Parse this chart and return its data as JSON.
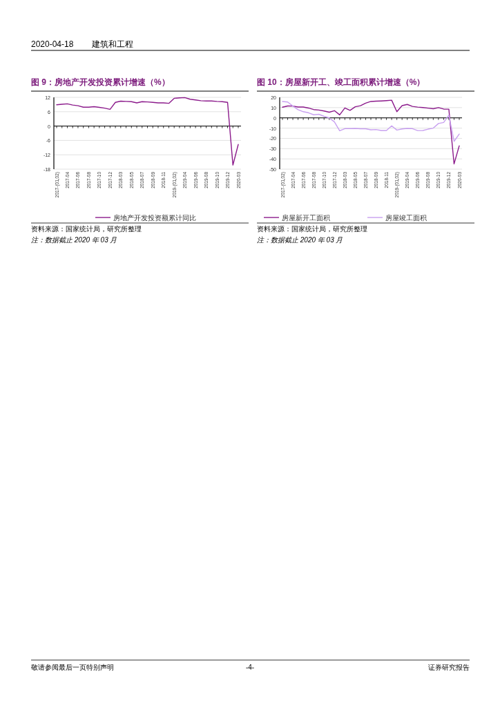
{
  "chart_data": [
    {
      "type": "line",
      "title": "图 9：房地产开发投资累计增速（%）",
      "categories": [
        "2017-(01,02)",
        null,
        "2017-04",
        null,
        "2017-06",
        null,
        "2017-08",
        null,
        "2017-10",
        null,
        "2017-12",
        null,
        "2018-03",
        null,
        "2018-05",
        null,
        "2018-07",
        null,
        "2018-09",
        null,
        "2018-11",
        null,
        "2019-(01,02)",
        null,
        "2019-04",
        null,
        "2019-06",
        null,
        "2019-08",
        null,
        "2019-10",
        null,
        "2019-12",
        null,
        "2020-03"
      ],
      "series": [
        {
          "name": "房地产开发投资额累计同比",
          "color": "#8b1a8b",
          "values": [
            8.9,
            9.1,
            9.3,
            8.8,
            8.5,
            7.9,
            7.9,
            8.1,
            7.8,
            7.5,
            7.0,
            9.9,
            10.4,
            10.3,
            10.2,
            9.7,
            10.2,
            10.1,
            9.9,
            9.7,
            9.7,
            9.5,
            11.6,
            11.8,
            11.9,
            11.2,
            10.9,
            10.6,
            10.5,
            10.5,
            10.3,
            10.2,
            9.9,
            -16.3,
            -7.7
          ]
        }
      ],
      "ylim": [
        -18,
        12
      ],
      "yticks": [
        -18,
        {
          "value": -12,
          "label": "-12"
        },
        -6,
        0,
        6,
        12
      ],
      "grid": "y",
      "legend": "bottom",
      "annotations": [
        "资料来源：国家统计局，研究所整理",
        "注：数据截止 2020 年 03 月",
        "2020-04-18",
        "建筑和工程"
      ]
    },
    {
      "type": "line",
      "title": "图 10：房屋新开工、竣工面积累计增速（%）",
      "categories": [
        "2017-(01,02)",
        null,
        "2017-04",
        null,
        "2017-06",
        null,
        "2017-08",
        null,
        "2017-10",
        null,
        "2017-12",
        null,
        "2018-03",
        null,
        "2018-05",
        null,
        "2018-07",
        null,
        "2018-09",
        null,
        "2018-11",
        null,
        "2019-(01,02)",
        null,
        "2019-04",
        null,
        "2019-06",
        null,
        "2019-08",
        null,
        "2019-10",
        null,
        "2019-12",
        null,
        "2020-03"
      ],
      "series": [
        {
          "name": "房屋新开工面积",
          "color": "#8b1a8b",
          "values": [
            10.4,
            11.6,
            11.5,
            10.6,
            10.6,
            9.6,
            8.1,
            7.6,
            6.7,
            5.5,
            7.0,
            2.9,
            9.7,
            7.3,
            10.8,
            11.8,
            14.4,
            16.0,
            16.3,
            16.5,
            16.8,
            17.2,
            6.0,
            11.9,
            13.1,
            11.2,
            10.5,
            10.1,
            9.5,
            8.9,
            10.0,
            8.6,
            8.5,
            -44.9,
            -27.2
          ]
        },
        {
          "name": "房屋竣工面积",
          "color": "#c8a0f0",
          "values": [
            16.0,
            15.5,
            11.5,
            8.0,
            6.0,
            5.0,
            3.0,
            3.5,
            1.5,
            0.0,
            -4.0,
            -12.5,
            -10.5,
            -10.5,
            -10.3,
            -10.6,
            -10.6,
            -11.6,
            -11.4,
            -12.3,
            -12.3,
            -7.8,
            -11.9,
            -10.8,
            -10.3,
            -10.5,
            -12.4,
            -12.3,
            -11.0,
            -10.0,
            -5.5,
            -4.5,
            2.6,
            -22.9,
            -15.8
          ]
        }
      ],
      "ylim": [
        -50,
        20
      ],
      "yticks": [
        -50,
        -40,
        -30,
        -20,
        -10,
        0,
        10,
        20
      ],
      "grid": "y",
      "legend": "bottom",
      "annotations": [
        "资料来源：国家统计局，研究所整理",
        "注：数据截止 2020 年 03 月",
        "敬请参阅最后一页特别声明",
        "-4-",
        "证券研究报告"
      ]
    }
  ]
}
